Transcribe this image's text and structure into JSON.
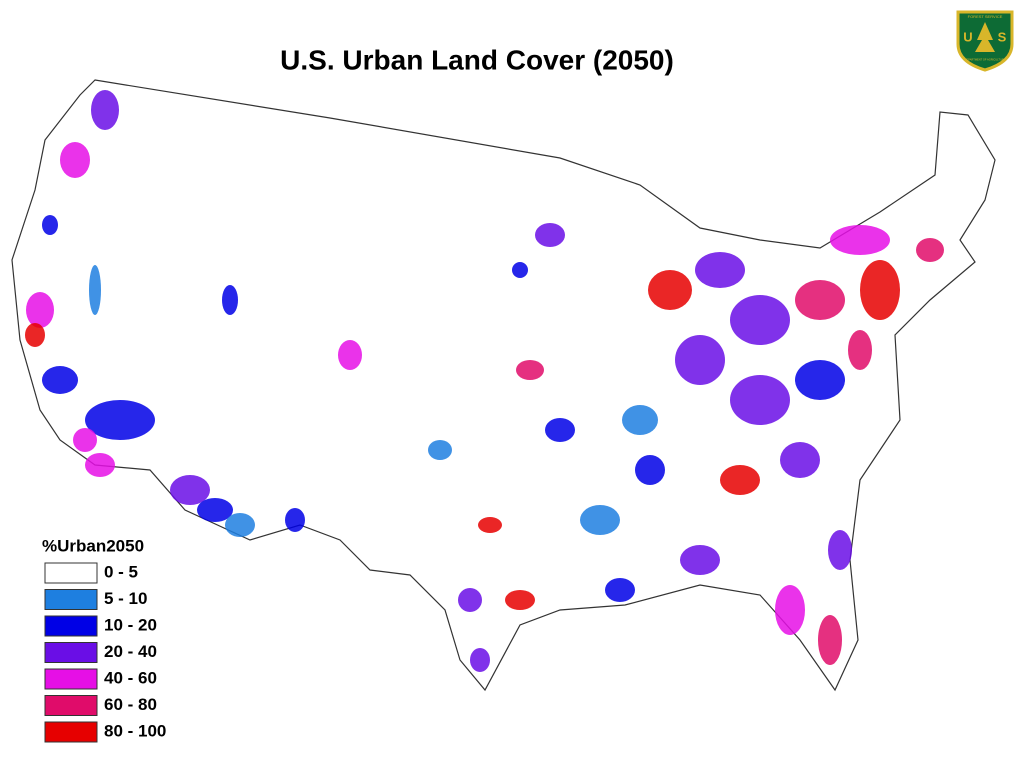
{
  "title": "U.S. Urban Land Cover (2050)",
  "logo": {
    "top_text": "FOREST SERVICE",
    "left_letter": "U",
    "right_letter": "S",
    "bottom_text": "DEPARTMENT OF AGRICULTURE"
  },
  "legend": {
    "title": "%Urban2050",
    "items": [
      {
        "label": "0 - 5",
        "color": "#ffffff"
      },
      {
        "label": "5 - 10",
        "color": "#1e7fe0"
      },
      {
        "label": "10 - 20",
        "color": "#0000e6"
      },
      {
        "label": "20 - 40",
        "color": "#6a0ee6"
      },
      {
        "label": "40 - 60",
        "color": "#e60fe6"
      },
      {
        "label": "60 - 80",
        "color": "#e00c6a"
      },
      {
        "label": "80 - 100",
        "color": "#e60000"
      }
    ]
  }
}
